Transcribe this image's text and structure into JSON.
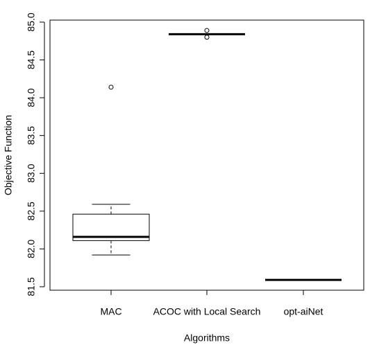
{
  "chart_data": {
    "type": "box",
    "x_label": "Algorithms",
    "y_label": "Objective Function",
    "categories": [
      "MAC",
      "ACOC with Local Search",
      "opt-aiNet"
    ],
    "boxes": [
      {
        "min": 81.92,
        "q1": 82.11,
        "median": 82.16,
        "q3": 82.46,
        "max": 82.59,
        "outliers": [
          84.14
        ]
      },
      {
        "min": 84.84,
        "q1": 84.84,
        "median": 84.84,
        "q3": 84.84,
        "max": 84.84,
        "outliers": [
          84.89,
          84.8
        ]
      },
      {
        "min": 81.59,
        "q1": 81.59,
        "median": 81.59,
        "q3": 81.59,
        "max": 81.59,
        "outliers": []
      }
    ],
    "color": "#000000",
    "ylim": [
      81.454,
      85.027
    ],
    "yticks": [
      81.5,
      {
        "value": 82,
        "label": "82.0"
      },
      82.5,
      {
        "value": 83,
        "label": "83.0"
      },
      83.5,
      {
        "value": 84,
        "label": "84.0"
      },
      84.5,
      {
        "value": 85,
        "label": "85.0"
      }
    ]
  }
}
